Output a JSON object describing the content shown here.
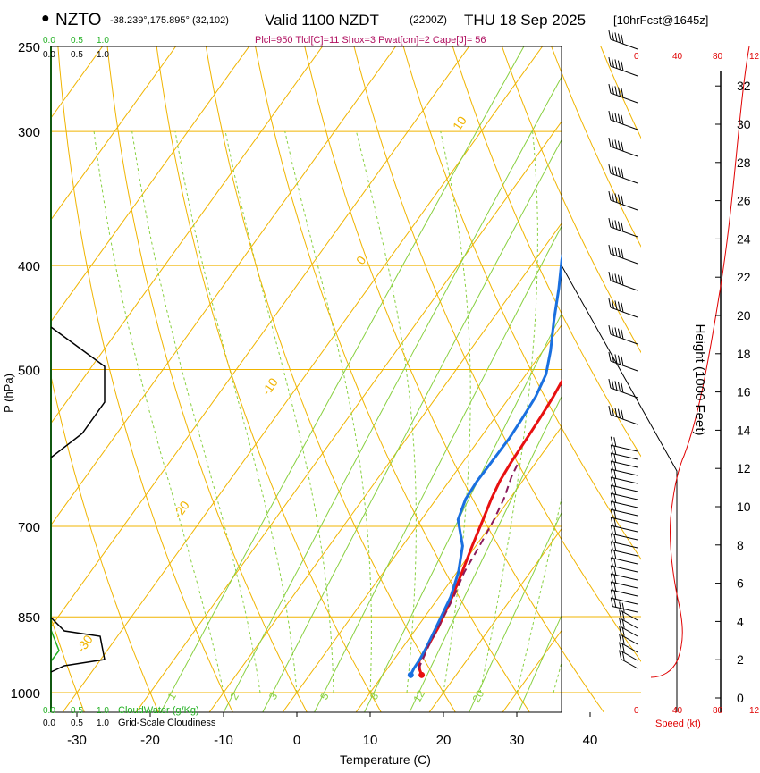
{
  "header": {
    "station": "NZTO",
    "coords": "-38.239°,175.895° (32,102)",
    "valid_label": "Valid 1100 NZDT",
    "utc_label": "(2200Z)",
    "date_label": "THU 18 Sep 2025",
    "forecast_label": "[10hrFcst@1645z]",
    "params_line": "Plcl=950 Tlcl[C]=11 Shox=3 Pwat[cm]=2 Cape[J]= 56"
  },
  "colors": {
    "isotherm": "#f0b400",
    "mixing_ratio": "#88d040",
    "temperature": "#e81010",
    "dewpoint": "#1a70e0",
    "parcel": "#8b1a5a",
    "cloud_water": "#20b020",
    "axis_red": "#e00000"
  },
  "chart_data": {
    "type": "line",
    "title": "Skew-T log-P sounding NZTO",
    "xlabel": "Temperature (C)",
    "ylabel": "P (hPa)",
    "right_ylabel": "Height (1000 Feet)",
    "x_ticks": [
      -30,
      -20,
      -10,
      0,
      10,
      20,
      30,
      40
    ],
    "x_tick_labels": [
      "-30",
      "-20",
      "-10",
      "0",
      "10",
      "20",
      "30",
      "40"
    ],
    "y_ticks": [
      250,
      300,
      400,
      500,
      700,
      850,
      1000
    ],
    "y_tick_labels": [
      "250",
      "300",
      "400",
      "500",
      "700",
      "850",
      "1000"
    ],
    "pressure_range": [
      250,
      1000
    ],
    "height_ticks": [
      0,
      2,
      4,
      6,
      8,
      10,
      12,
      14,
      16,
      18,
      20,
      22,
      24,
      26,
      28,
      30,
      32
    ],
    "height_tick_labels": [
      "0",
      "2",
      "4",
      "6",
      "8",
      "10",
      "12",
      "14",
      "16",
      "18",
      "20",
      "22",
      "24",
      "26",
      "28",
      "30",
      "32"
    ],
    "isotherm_labels": [
      {
        "text": "10",
        "x": -33,
        "y": 300
      },
      {
        "text": "0",
        "x": -33,
        "y": 400
      },
      {
        "text": "-10",
        "x": -33,
        "y": 530
      },
      {
        "text": "-20",
        "x": -33,
        "y": 690
      },
      {
        "text": "-30",
        "x": -33,
        "y": 920
      },
      {
        "text": "0",
        "x": 37,
        "y": 330
      },
      {
        "text": "10",
        "x": 40,
        "y": 430
      },
      {
        "text": "20",
        "x": 45,
        "y": 500
      },
      {
        "text": "30",
        "x": 50,
        "y": 580
      }
    ],
    "mixing_ratio_labels": [
      "1",
      "2",
      "3",
      "5",
      "8",
      "12",
      "20"
    ],
    "cloud_scale_labels": [
      "0.0",
      "0.5",
      "1.0"
    ],
    "cloud_water_label": "CloudWater (g/Kg)",
    "cloudiness_label": "Grid-Scale Cloudiness",
    "speed_axis_labels": [
      "0",
      "40",
      "80",
      "12"
    ],
    "speed_label": "Speed (kt)",
    "series": [
      {
        "name": "Temperature",
        "points": [
          [
            15.3,
            963
          ],
          [
            14.5,
            952
          ],
          [
            13.6,
            935
          ],
          [
            13.3,
            905
          ],
          [
            12.9,
            870
          ],
          [
            11.8,
            815
          ],
          [
            10.7,
            772
          ],
          [
            9.5,
            730
          ],
          [
            8.4,
            690
          ],
          [
            7.5,
            660
          ],
          [
            6.9,
            635
          ],
          [
            6.6,
            610
          ],
          [
            6.4,
            580
          ],
          [
            6.2,
            555
          ],
          [
            5.9,
            530
          ],
          [
            5.4,
            505
          ],
          [
            4.8,
            480
          ],
          [
            3.8,
            450
          ],
          [
            2.6,
            420
          ],
          [
            1.0,
            390
          ],
          [
            -0.8,
            360
          ],
          [
            -2.5,
            335
          ],
          [
            -4.2,
            312
          ],
          [
            -5.5,
            295
          ],
          [
            -5.8,
            280
          ],
          [
            -5.5,
            268
          ],
          [
            -5.1,
            260
          ],
          [
            -4.6,
            252
          ],
          [
            -4.2,
            248
          ]
        ]
      },
      {
        "name": "Dewpoint",
        "points": [
          [
            13.8,
            963
          ],
          [
            13.6,
            950
          ],
          [
            13.5,
            930
          ],
          [
            13.2,
            905
          ],
          [
            12.6,
            870
          ],
          [
            11.6,
            815
          ],
          [
            10.2,
            772
          ],
          [
            8.2,
            730
          ],
          [
            5.0,
            690
          ],
          [
            4.0,
            660
          ],
          [
            3.8,
            635
          ],
          [
            3.9,
            610
          ],
          [
            4.0,
            580
          ],
          [
            3.8,
            555
          ],
          [
            3.5,
            530
          ],
          [
            2.7,
            505
          ],
          [
            1.0,
            480
          ],
          [
            -1.5,
            450
          ],
          [
            -4.0,
            420
          ],
          [
            -6.4,
            395
          ],
          [
            -8.2,
            375
          ],
          [
            -9.7,
            355
          ],
          [
            -11.0,
            335
          ],
          [
            -12.5,
            315
          ],
          [
            -14.2,
            296
          ],
          [
            -15.8,
            280
          ],
          [
            -16.8,
            268
          ],
          [
            -17.6,
            258
          ],
          [
            -18.0,
            252
          ]
        ]
      },
      {
        "name": "Parcel",
        "points": [
          [
            14.3,
            952
          ],
          [
            13.4,
            905
          ],
          [
            12.6,
            850
          ],
          [
            12.0,
            815
          ],
          [
            11.0,
            772
          ],
          [
            10.5,
            730
          ],
          [
            9.9,
            690
          ],
          [
            9.2,
            660
          ],
          [
            8.1,
            630
          ],
          [
            7.6,
            610
          ]
        ]
      }
    ]
  }
}
